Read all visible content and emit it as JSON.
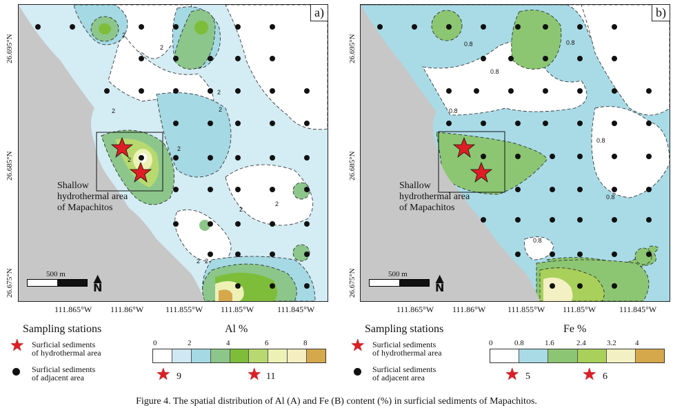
{
  "panels": [
    {
      "label": "a)",
      "area_label": [
        "Shallow",
        "hydrothermal area",
        "of Mapachitos"
      ],
      "contours": [
        "2",
        "2",
        "2",
        "2",
        "2",
        "2",
        "2",
        "2",
        "2",
        "2",
        "2"
      ]
    },
    {
      "label": "b)",
      "area_label": [
        "Shallow",
        "hydrothermal area",
        "of Mapachitos"
      ],
      "contours": [
        "0.8",
        "0.8",
        "0.8",
        "0.8",
        "0.8",
        "0.8",
        "0.8"
      ]
    }
  ],
  "latitude_labels": [
    "26.695°N",
    "26.685°N",
    "26.675°N"
  ],
  "longitude_labels": [
    "111.865°W",
    "111.86°W",
    "111.855°W",
    "111.85°W",
    "111.845°W"
  ],
  "scalebar": {
    "text": "500 m"
  },
  "north_arrow": "N",
  "legend": {
    "sampling_title": "Sampling stations",
    "hydro": [
      "Surficial sediments",
      "of hydrothermal area"
    ],
    "adjacent": [
      "Surficial sediments",
      "of adjacent area"
    ]
  },
  "al_scale": {
    "title": "Al  %",
    "ticks": [
      "0",
      "2",
      "4",
      "6",
      "8"
    ],
    "colors": [
      "#ffffff",
      "#cfe8f1",
      "#a5d9e3",
      "#8cc68b",
      "#7ebd3a",
      "#b7d96f",
      "#edf1b6",
      "#f4eec1",
      "#d6a84c"
    ],
    "star_values": [
      "9",
      "11"
    ]
  },
  "fe_scale": {
    "title": "Fe  %",
    "ticks": [
      "0",
      "0.8",
      "1.6",
      "2.4",
      "3.2",
      "4"
    ],
    "colors": [
      "#ffffff",
      "#a9dbe6",
      "#8cc672",
      "#a8d05a",
      "#f3f1c3",
      "#d6a84c"
    ],
    "star_values": [
      "5",
      "6"
    ]
  },
  "caption": "Figure 4. The spatial distribution of Al (A) and Fe (B) content (%) in surficial sediments of Mapachitos."
}
